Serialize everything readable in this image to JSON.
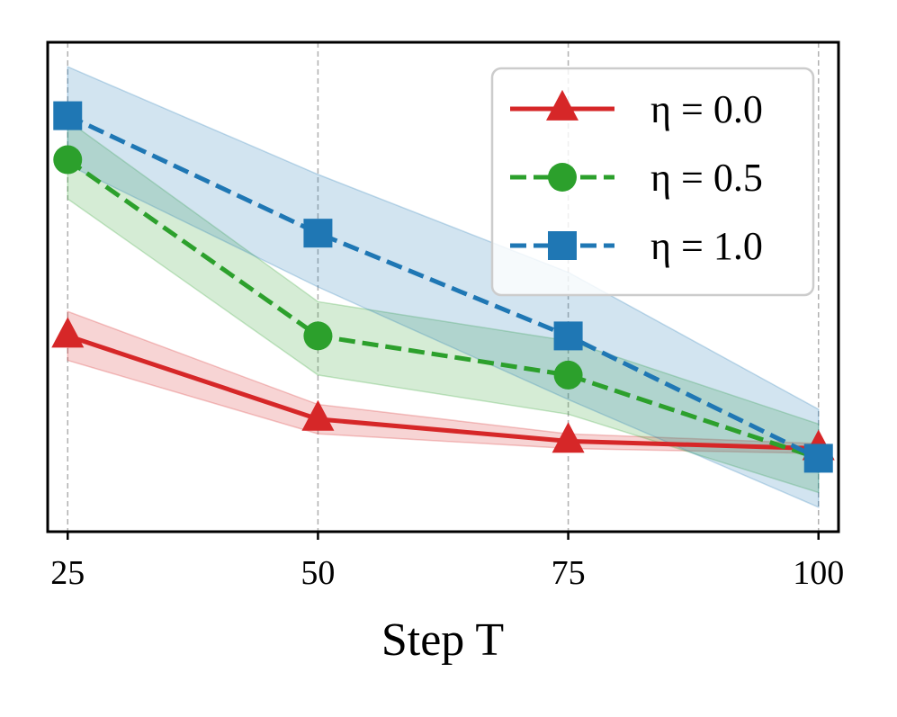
{
  "chart_data": {
    "type": "line",
    "title": "",
    "xlabel": "Step T",
    "ylabel": "",
    "x": [
      25,
      50,
      75,
      100
    ],
    "x_tick_labels": [
      "25",
      "50",
      "75",
      "100"
    ],
    "xlim": [
      23,
      102
    ],
    "ylim": [
      0,
      1
    ],
    "y_ticks_shown": false,
    "grid": "vertical dashed",
    "legend_position": "top-right",
    "series": [
      {
        "name": "η = 0.0",
        "color": "#d62728",
        "linestyle": "solid",
        "marker": "triangle",
        "values": [
          0.4,
          0.23,
          0.185,
          0.17
        ],
        "band_lower": [
          0.35,
          0.2,
          0.17,
          0.16
        ],
        "band_upper": [
          0.45,
          0.26,
          0.2,
          0.18
        ]
      },
      {
        "name": "η = 0.5",
        "color": "#2ca02c",
        "linestyle": "dashed",
        "marker": "circle",
        "values": [
          0.76,
          0.4,
          0.32,
          0.15
        ],
        "band_lower": [
          0.68,
          0.32,
          0.24,
          0.08
        ],
        "band_upper": [
          0.84,
          0.47,
          0.39,
          0.22
        ]
      },
      {
        "name": "η = 1.0",
        "color": "#1f77b4",
        "linestyle": "dashed",
        "marker": "square",
        "values": [
          0.85,
          0.61,
          0.4,
          0.15
        ],
        "band_lower": [
          0.75,
          0.5,
          0.27,
          0.05
        ],
        "band_upper": [
          0.95,
          0.73,
          0.53,
          0.25
        ]
      }
    ]
  }
}
